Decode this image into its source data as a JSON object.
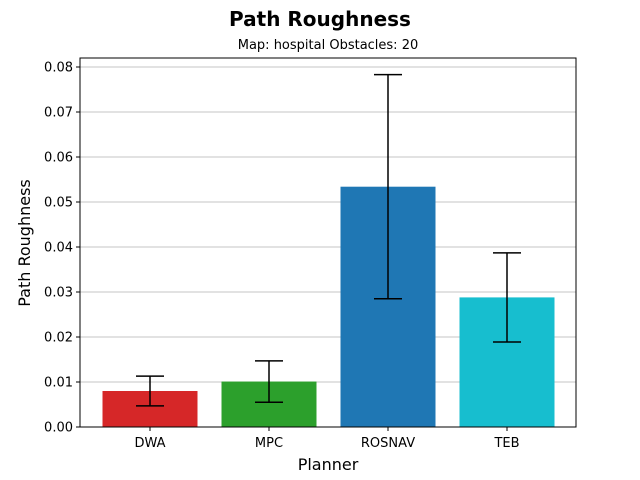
{
  "chart_data": {
    "type": "bar",
    "title": "Path Roughness",
    "subtitle": "Map: hospital Obstacles: 20",
    "xlabel": "Planner",
    "ylabel": "Path Roughness",
    "categories": [
      "DWA",
      "MPC",
      "ROSNAV",
      "TEB"
    ],
    "values": [
      0.008,
      0.0101,
      0.0534,
      0.0288
    ],
    "error": [
      0.0033,
      0.0046,
      0.0249,
      0.0099
    ],
    "colors": [
      "#d62728",
      "#2ca02c",
      "#1f77b4",
      "#17becf"
    ],
    "ylim": [
      0,
      0.082
    ],
    "yticks": [
      "0.00",
      "0.01",
      "0.02",
      "0.03",
      "0.04",
      "0.05",
      "0.06",
      "0.07",
      "0.08"
    ],
    "ytick_values": [
      0,
      0.01,
      0.02,
      0.03,
      0.04,
      0.05,
      0.06,
      0.07,
      0.08
    ],
    "grid": "y"
  }
}
